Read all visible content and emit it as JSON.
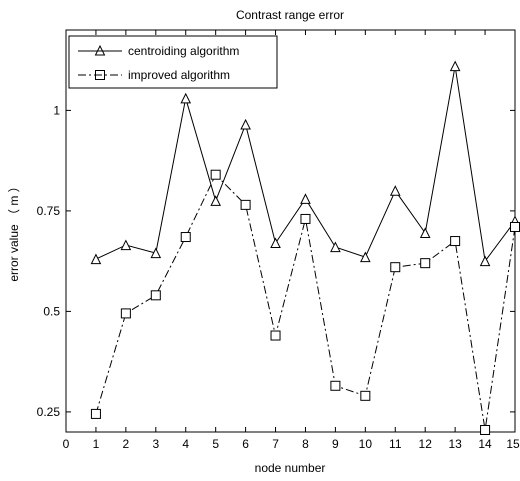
{
  "chart_data": {
    "type": "line",
    "title": "Contrast range error",
    "xlabel": "node number",
    "ylabel": "error value （ m ）",
    "xlim": [
      0,
      15
    ],
    "ylim": [
      0.2,
      1.2
    ],
    "x_ticks": [
      0,
      1,
      2,
      3,
      4,
      5,
      6,
      7,
      8,
      9,
      10,
      11,
      12,
      13,
      14,
      15
    ],
    "y_ticks": [
      0.25,
      0.5,
      0.75,
      1
    ],
    "y_tick_labels": [
      "0.25",
      "0.5",
      "0.75",
      "1"
    ],
    "grid": false,
    "legend_position": "top-left",
    "x": [
      1,
      2,
      3,
      4,
      5,
      6,
      7,
      8,
      9,
      10,
      11,
      12,
      13,
      14,
      15
    ],
    "series": [
      {
        "name": "centroiding algorithm",
        "marker": "triangle",
        "line_style": "solid",
        "values": [
          0.63,
          0.665,
          0.645,
          1.03,
          0.775,
          0.965,
          0.67,
          0.78,
          0.66,
          0.635,
          0.8,
          0.695,
          1.11,
          0.625,
          0.725
        ]
      },
      {
        "name": "improved algorithm",
        "marker": "square",
        "line_style": "dash-dot",
        "values": [
          0.245,
          0.495,
          0.54,
          0.685,
          0.84,
          0.765,
          0.44,
          0.73,
          0.315,
          0.29,
          0.61,
          0.62,
          0.675,
          0.205,
          0.71
        ]
      }
    ],
    "colors": {
      "line": "#000000",
      "background": "#ffffff"
    }
  }
}
